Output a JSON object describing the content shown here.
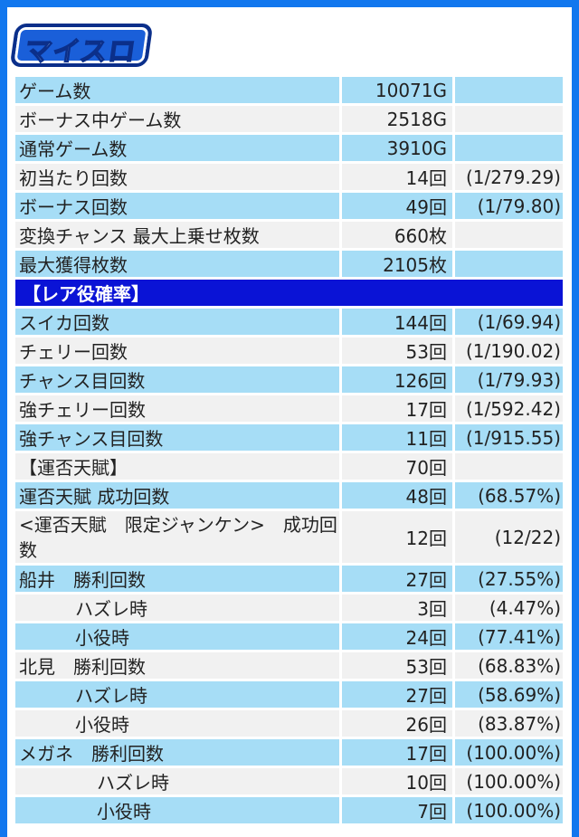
{
  "header": {
    "logo_text": "マイスロ"
  },
  "rows": [
    {
      "label": "ゲーム数",
      "value": "10071G",
      "rate": ""
    },
    {
      "label": "ボーナス中ゲーム数",
      "value": "2518G",
      "rate": ""
    },
    {
      "label": "通常ゲーム数",
      "value": "3910G",
      "rate": ""
    },
    {
      "label": "初当たり回数",
      "value": "14回",
      "rate": "(1/279.29)"
    },
    {
      "label": "ボーナス回数",
      "value": "49回",
      "rate": "(1/79.80)"
    },
    {
      "label": "変換チャンス 最大上乗せ枚数",
      "value": "660枚",
      "rate": ""
    },
    {
      "label": "最大獲得枚数",
      "value": "2105枚",
      "rate": ""
    },
    {
      "label": "【レア役確率】",
      "value": "",
      "rate": ""
    },
    {
      "label": "スイカ回数",
      "value": "144回",
      "rate": "(1/69.94)"
    },
    {
      "label": "チェリー回数",
      "value": "53回",
      "rate": "(1/190.02)"
    },
    {
      "label": "チャンス目回数",
      "value": "126回",
      "rate": "(1/79.93)"
    },
    {
      "label": "強チェリー回数",
      "value": "17回",
      "rate": "(1/592.42)"
    },
    {
      "label": "強チャンス目回数",
      "value": "11回",
      "rate": "(1/915.55)"
    },
    {
      "label": "【運否天賦】",
      "value": "70回",
      "rate": ""
    },
    {
      "label": "運否天賦 成功回数",
      "value": "48回",
      "rate": "(68.57%)"
    },
    {
      "label": "<運否天賦　限定ジャンケン>　成功回数",
      "value": "12回",
      "rate": "(12/22)"
    },
    {
      "label": "船井　勝利回数",
      "value": "27回",
      "rate": "(27.55%)"
    },
    {
      "label": "ハズレ時",
      "value": "3回",
      "rate": "(4.47%)"
    },
    {
      "label": "小役時",
      "value": "24回",
      "rate": "(77.41%)"
    },
    {
      "label": "北見　勝利回数",
      "value": "53回",
      "rate": "(68.83%)"
    },
    {
      "label": "ハズレ時",
      "value": "27回",
      "rate": "(58.69%)"
    },
    {
      "label": "小役時",
      "value": "26回",
      "rate": "(83.87%)"
    },
    {
      "label": "メガネ　勝利回数",
      "value": "17回",
      "rate": "(100.00%)"
    },
    {
      "label": "ハズレ時",
      "value": "10回",
      "rate": "(100.00%)"
    },
    {
      "label": "小役時",
      "value": "7回",
      "rate": "(100.00%)"
    }
  ]
}
